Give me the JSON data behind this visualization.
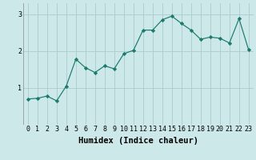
{
  "x": [
    0,
    1,
    2,
    3,
    4,
    5,
    6,
    7,
    8,
    9,
    10,
    11,
    12,
    13,
    14,
    15,
    16,
    17,
    18,
    19,
    20,
    21,
    22,
    23
  ],
  "y": [
    0.7,
    0.72,
    0.78,
    0.65,
    1.05,
    1.78,
    1.55,
    1.42,
    1.6,
    1.52,
    1.93,
    2.02,
    2.57,
    2.57,
    2.85,
    2.95,
    2.75,
    2.57,
    2.32,
    2.38,
    2.35,
    2.22,
    2.88,
    2.03
  ],
  "xlabel": "Humidex (Indice chaleur)",
  "xlim": [
    -0.5,
    23.5
  ],
  "ylim": [
    0,
    3.3
  ],
  "yticks": [
    1,
    2,
    3
  ],
  "xtick_labels": [
    "0",
    "1",
    "2",
    "3",
    "4",
    "5",
    "6",
    "7",
    "8",
    "9",
    "10",
    "11",
    "12",
    "13",
    "14",
    "15",
    "16",
    "17",
    "18",
    "19",
    "20",
    "21",
    "22",
    "23"
  ],
  "line_color": "#1a7a6e",
  "marker": "D",
  "marker_size": 2.2,
  "background_color": "#cce8e8",
  "grid_color": "#aacccc",
  "xlabel_fontsize": 7.5,
  "tick_fontsize": 6.0,
  "linewidth": 0.85
}
